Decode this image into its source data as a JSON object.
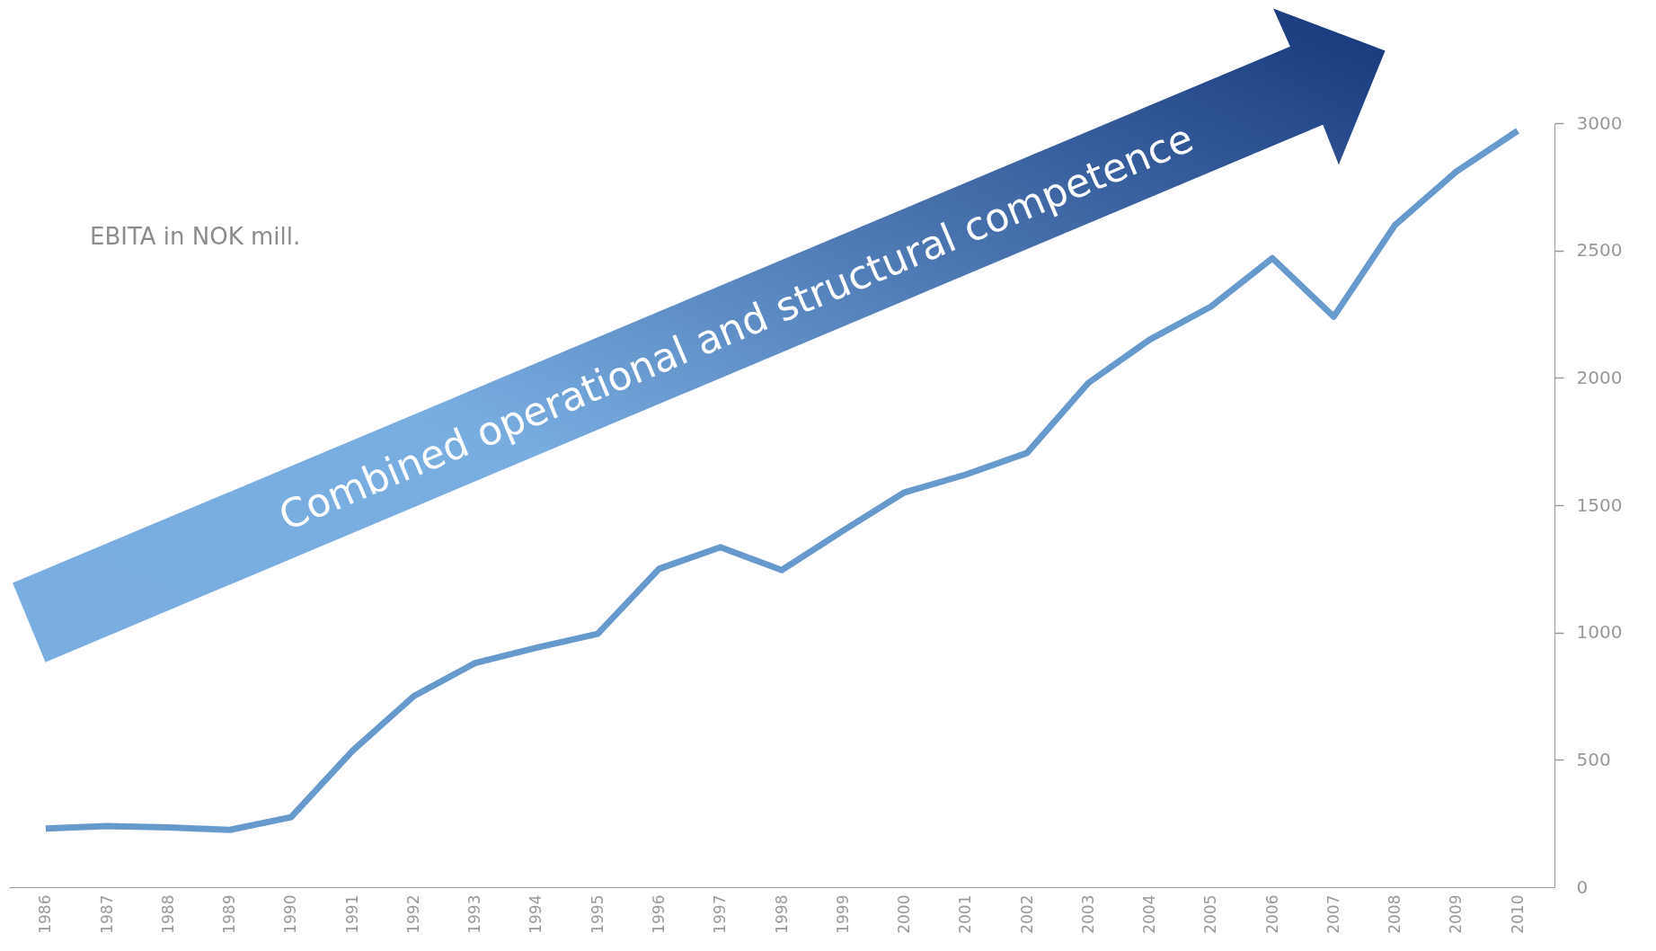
{
  "chart_data": {
    "type": "line",
    "ylabel": "EBITA in NOK mill.",
    "categories": [
      "1986",
      "1987",
      "1988",
      "1989",
      "1990",
      "1991",
      "1992",
      "1993",
      "1994",
      "1995",
      "1996",
      "1997",
      "1998",
      "1999",
      "2000",
      "2001",
      "2002",
      "2003",
      "2004",
      "2005",
      "2006",
      "2007",
      "2008",
      "2009",
      "2010"
    ],
    "series": [
      {
        "color": "#6699cc",
        "values": [
          230,
          240,
          235,
          225,
          275,
          535,
          750,
          880,
          940,
          995,
          1250,
          1335,
          1245,
          1400,
          1550,
          1620,
          1705,
          1980,
          2150,
          2280,
          2470,
          2240,
          2600,
          2810,
          2970
        ]
      }
    ],
    "ylim": [
      0,
      3000
    ],
    "yticks": [
      0,
      500,
      1000,
      1500,
      2000,
      2500,
      3000
    ],
    "grid": false,
    "marker": "none",
    "line_style": "solid",
    "annotations": [
      "Combined operational and structural competence"
    ]
  }
}
